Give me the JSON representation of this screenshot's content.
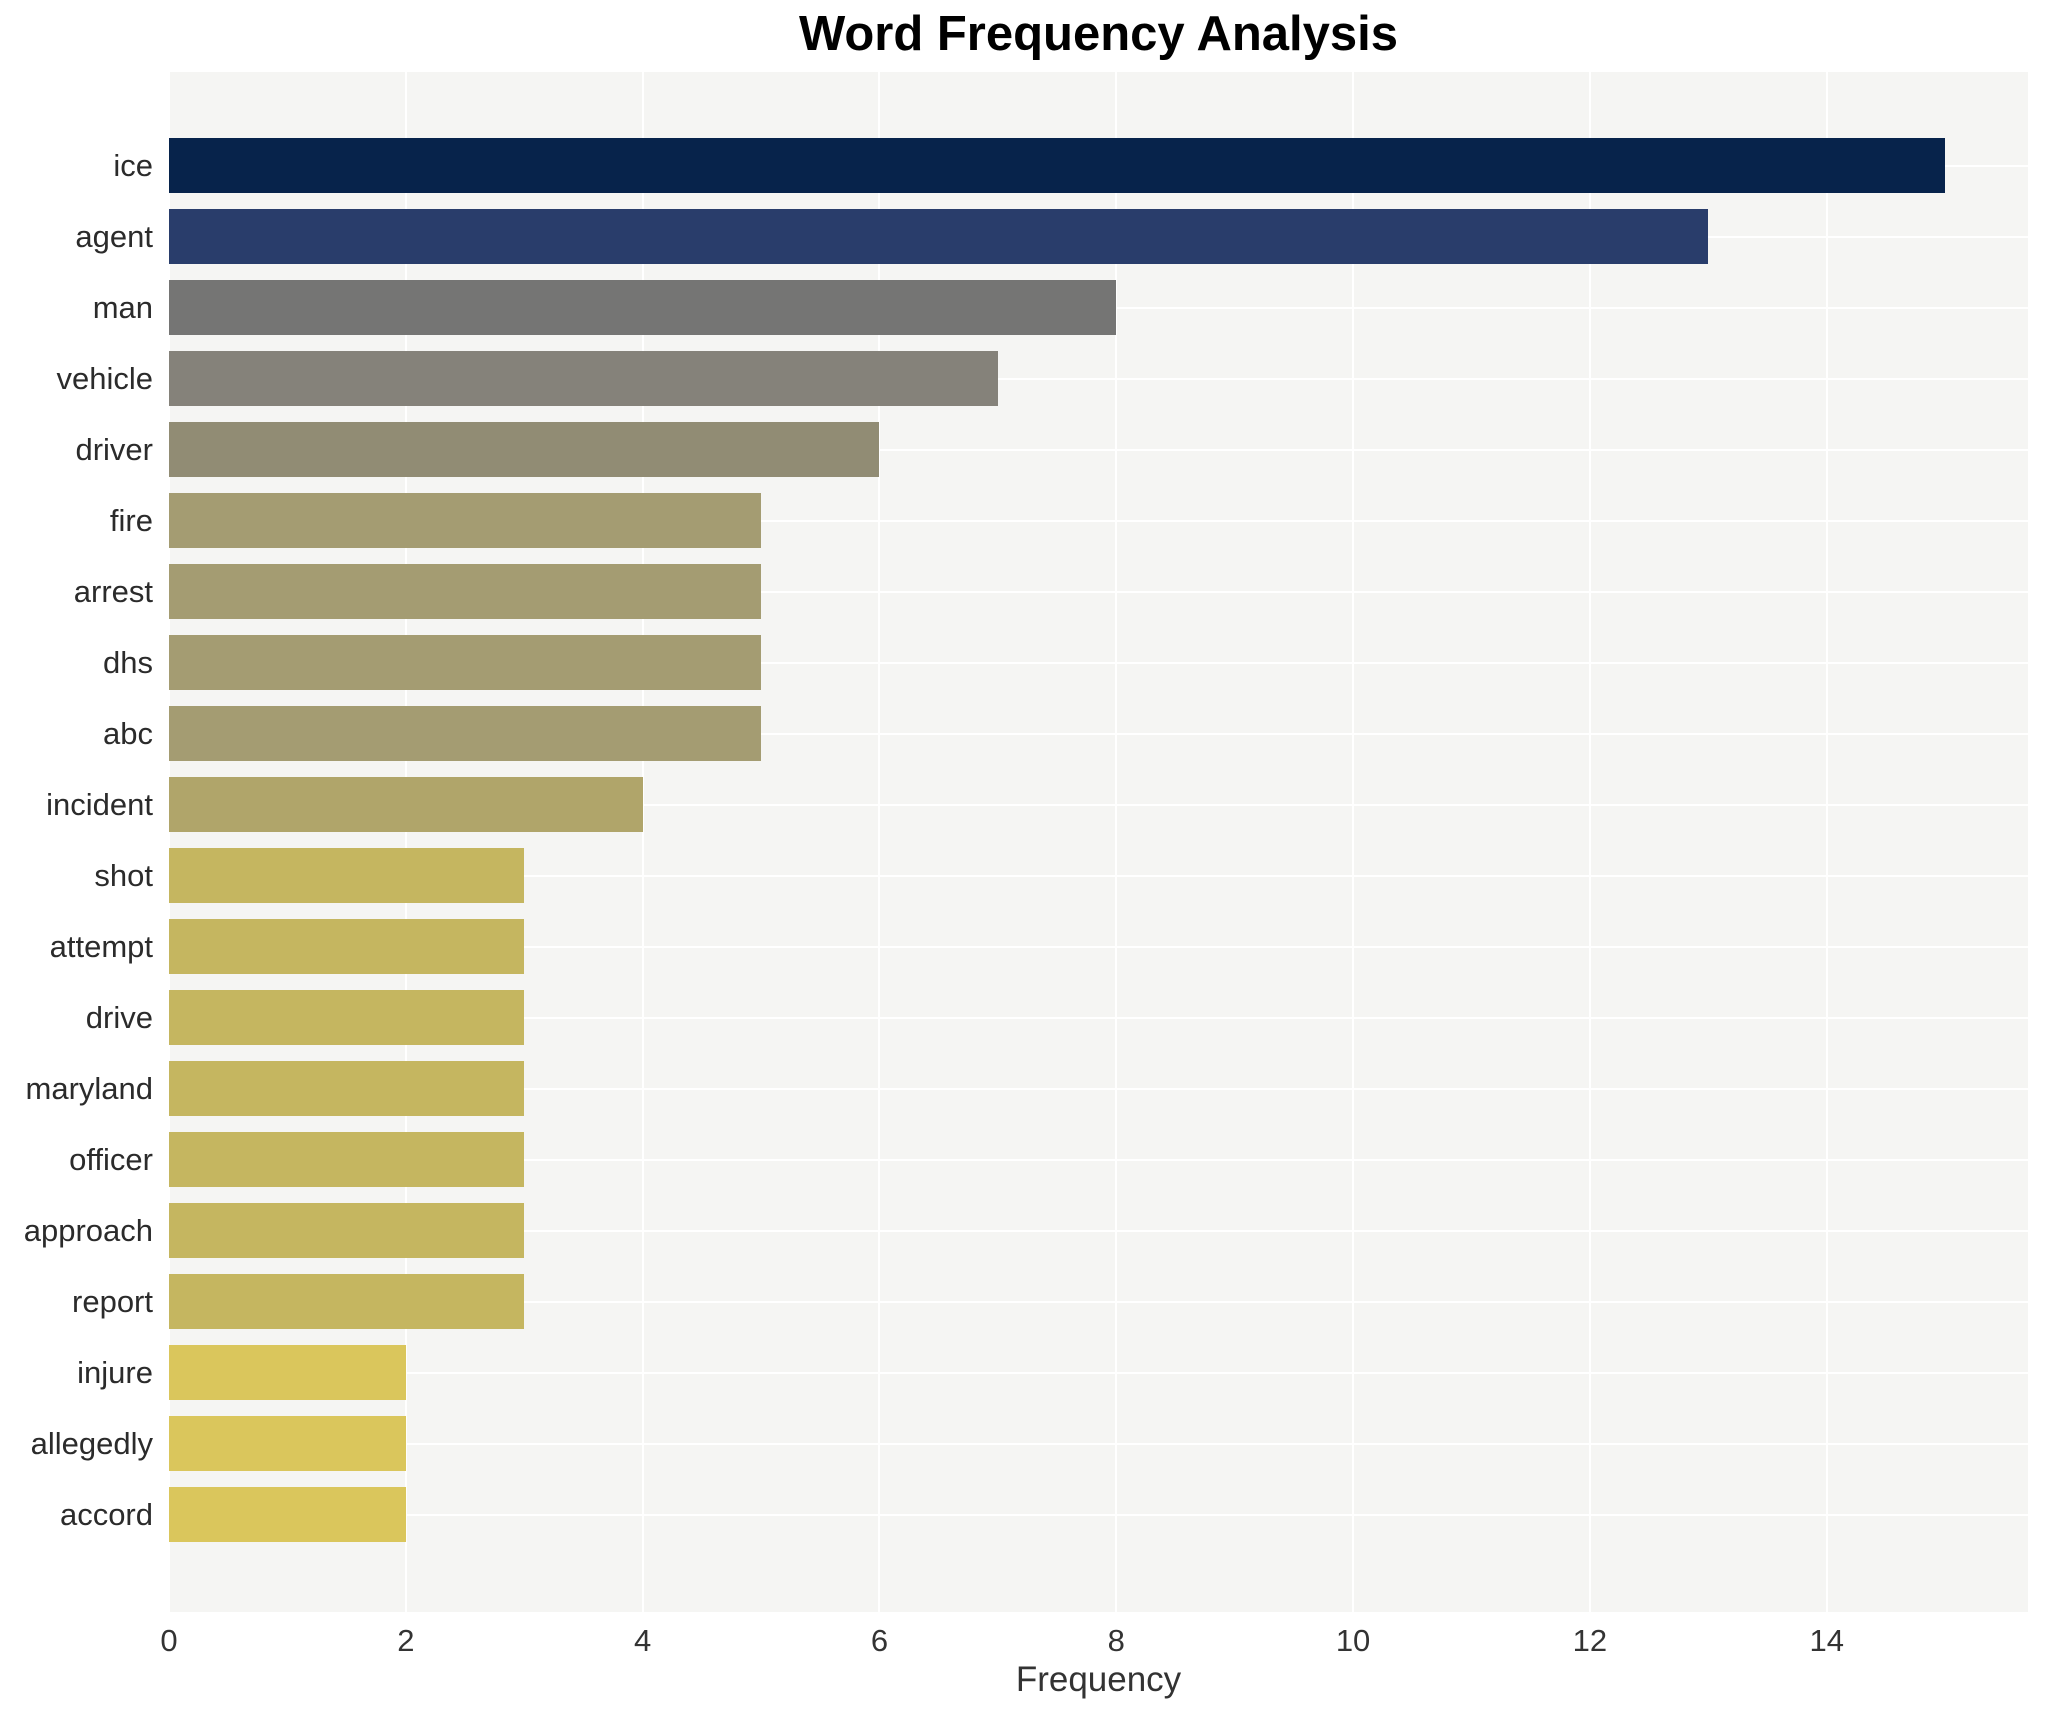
{
  "chart_data": {
    "type": "bar",
    "orientation": "horizontal",
    "title": "Word Frequency Analysis",
    "xlabel": "Frequency",
    "ylabel": "",
    "categories": [
      "ice",
      "agent",
      "man",
      "vehicle",
      "driver",
      "fire",
      "arrest",
      "dhs",
      "abc",
      "incident",
      "shot",
      "attempt",
      "drive",
      "maryland",
      "officer",
      "approach",
      "report",
      "injure",
      "allegedly",
      "accord"
    ],
    "values": [
      15,
      13,
      8,
      7,
      6,
      5,
      5,
      5,
      5,
      4,
      3,
      3,
      3,
      3,
      3,
      3,
      3,
      2,
      2,
      2
    ],
    "bar_colors": [
      "#07234b",
      "#293d6b",
      "#757574",
      "#85827a",
      "#918c74",
      "#a49c72",
      "#a49c72",
      "#a49c72",
      "#a49c72",
      "#b0a56a",
      "#c5b660",
      "#c5b660",
      "#c5b660",
      "#c5b660",
      "#c5b660",
      "#c5b660",
      "#c5b660",
      "#dac65c",
      "#dac65c",
      "#dac65c"
    ],
    "xlim": [
      0,
      15.7
    ],
    "xticks": [
      0,
      2,
      4,
      6,
      8,
      10,
      12,
      14
    ],
    "grid": "white gridlines on light plot background, vertical at ticks and horizontal at category centers",
    "legend": "none"
  },
  "colors": {
    "page_bg": "#ffffff",
    "plot_bg": "#f5f5f3",
    "gridline": "#ffffff",
    "title_color": "#000000",
    "category_label_color": "#2b2b2b",
    "tick_label_color": "#333333",
    "axis_label_color": "#333333"
  }
}
